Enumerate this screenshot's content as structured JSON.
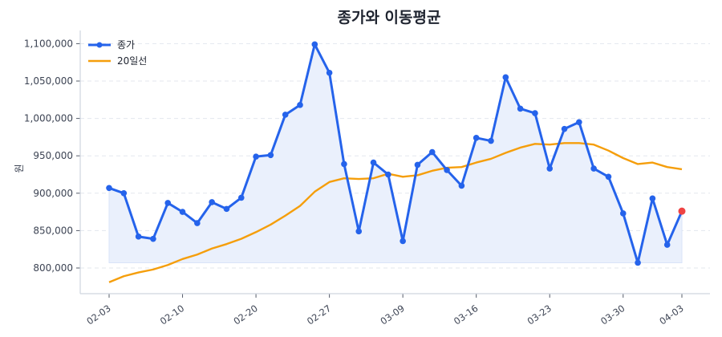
{
  "chart_data": {
    "type": "line",
    "title": "종가와 이동평균",
    "xlabel": "",
    "ylabel": "원",
    "ylim": [
      770000,
      1117000
    ],
    "yticks": [
      800000,
      850000,
      900000,
      950000,
      1000000,
      1050000,
      1100000
    ],
    "ytick_labels": [
      "800,000",
      "850,000",
      "900,000",
      "950,000",
      "1,000,000",
      "1,050,000",
      "1,100,000"
    ],
    "xtick_labels": [
      "02-03",
      "02-10",
      "02-20",
      "02-27",
      "03-09",
      "03-16",
      "03-23",
      "03-30",
      "04-03"
    ],
    "xtick_indices": [
      0,
      5,
      10,
      15,
      20,
      25,
      30,
      35,
      39
    ],
    "grid": "horizontal dashed",
    "legend_position": "upper left",
    "n_points": 40,
    "series": [
      {
        "name": "종가",
        "color": "#2563eb",
        "marker": "circle",
        "fill_below_to_min": true,
        "fill_color": "#eaf0fc",
        "last_point_color": "#ef4444",
        "values": [
          907000,
          900000,
          842000,
          839000,
          887000,
          875000,
          860000,
          888000,
          879000,
          894000,
          949000,
          951000,
          1005000,
          1018000,
          1099000,
          1061000,
          939000,
          849000,
          941000,
          925000,
          836000,
          938000,
          955000,
          931000,
          910000,
          974000,
          970000,
          1055000,
          1013000,
          1007000,
          933000,
          986000,
          995000,
          933000,
          922000,
          873000,
          807000,
          893000,
          831000,
          876000
        ]
      },
      {
        "name": "20일선",
        "color": "#f59e0b",
        "marker": "none",
        "values": [
          781000,
          789000,
          794000,
          798000,
          804000,
          812000,
          818000,
          826000,
          832000,
          839000,
          848000,
          858000,
          870000,
          883000,
          902000,
          915000,
          920000,
          919000,
          920000,
          926000,
          922000,
          924000,
          930000,
          934000,
          935000,
          941000,
          946000,
          954000,
          961000,
          966000,
          965000,
          967000,
          967000,
          965000,
          957000,
          947000,
          939000,
          941000,
          935000,
          932000
        ]
      }
    ]
  },
  "colors": {
    "axis": "#cfd5df",
    "grid": "#e3e7ee",
    "text": "#3d4454"
  }
}
